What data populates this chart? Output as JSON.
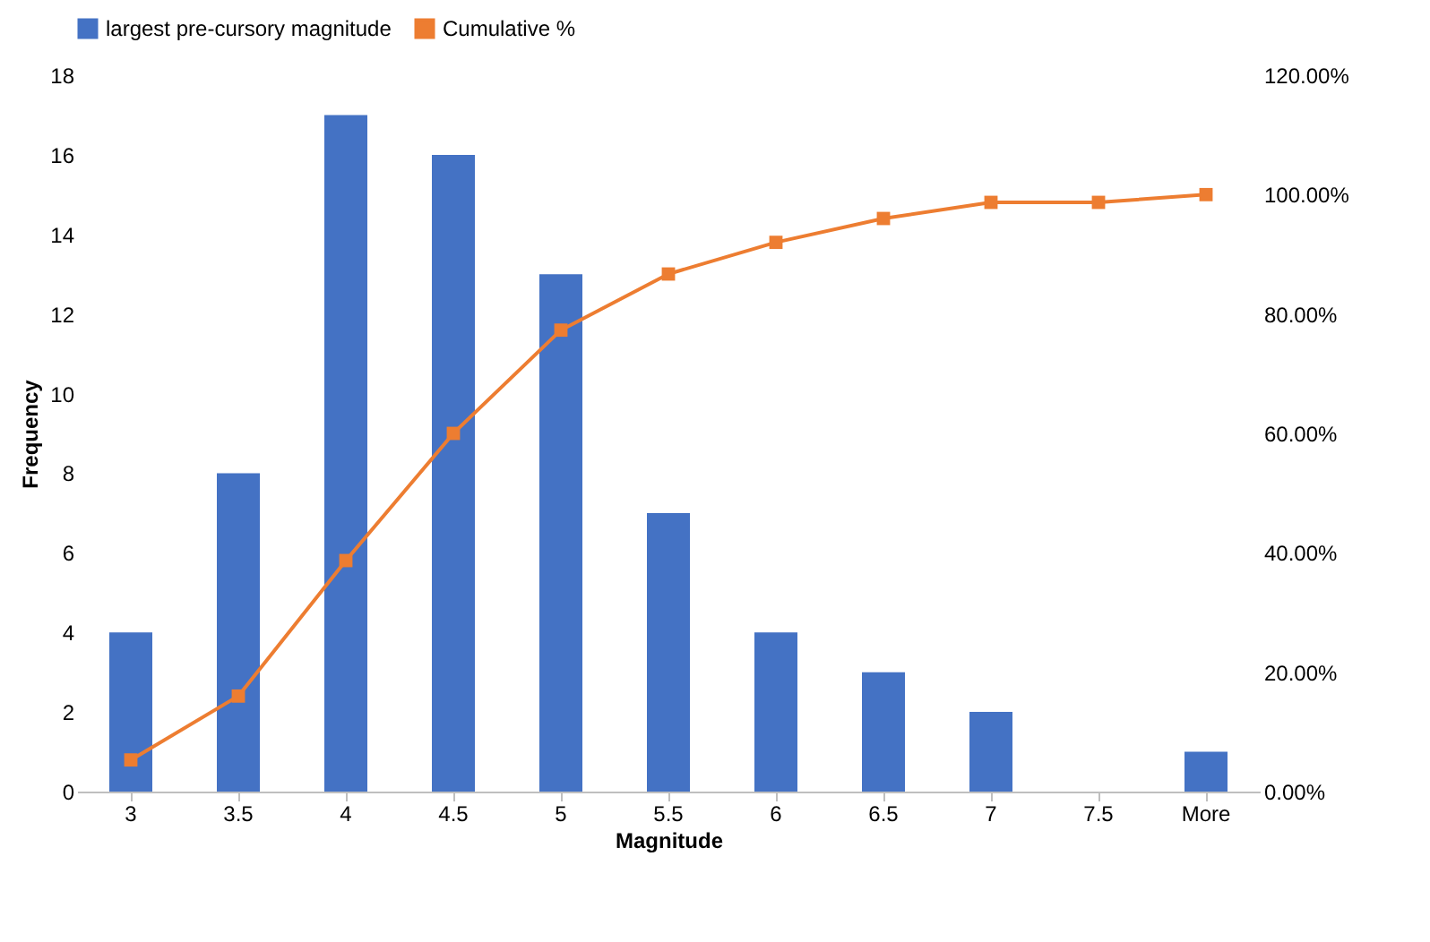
{
  "chart_data": {
    "type": "bar",
    "xlabel": "Magnitude",
    "ylabel": "Frequency",
    "categories": [
      "3",
      "3.5",
      "4",
      "4.5",
      "5",
      "5.5",
      "6",
      "6.5",
      "7",
      "7.5",
      "More"
    ],
    "series": [
      {
        "name": "largest pre-cursory magnitude",
        "color": "#4472c4",
        "values": [
          4,
          8,
          17,
          16,
          13,
          7,
          4,
          3,
          2,
          0,
          1
        ]
      },
      {
        "name": "Cumulative %",
        "type": "line",
        "axis": "y2",
        "color": "#ed7d31",
        "marker": "square",
        "values": [
          5.3,
          16,
          38.7,
          60,
          77.3,
          86.7,
          92,
          96,
          98.7,
          98.7,
          100
        ]
      }
    ],
    "ylim": [
      0,
      18
    ],
    "yticks": [
      0,
      2,
      4,
      6,
      8,
      10,
      12,
      14,
      16,
      18
    ],
    "y2lim": [
      0,
      120
    ],
    "y2ticks": [
      {
        "value": 0,
        "label": "0.00%"
      },
      {
        "value": 20,
        "label": "20.00%"
      },
      {
        "value": 40,
        "label": "40.00%"
      },
      {
        "value": 60,
        "label": "60.00%"
      },
      {
        "value": 80,
        "label": "80.00%"
      },
      {
        "value": 100,
        "label": "100.00%"
      },
      {
        "value": 120,
        "label": "120.00%"
      }
    ],
    "grid": false,
    "legend": "top"
  }
}
